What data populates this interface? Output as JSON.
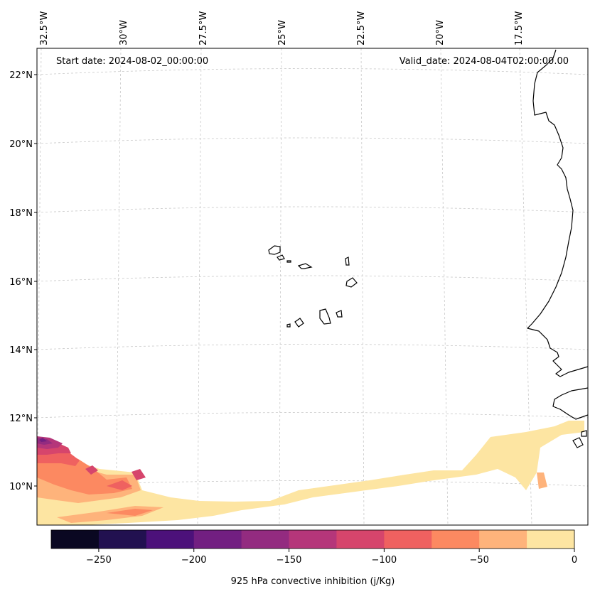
{
  "header": {
    "start_date": "Start date: 2024-08-02_00:00:00",
    "valid_date": "Valid_date: 2024-08-04T02:00:00.00"
  },
  "longitude_labels": [
    "32.5°W",
    "30°W",
    "27.5°W",
    "25°W",
    "22.5°W",
    "20°W",
    "17.5°W"
  ],
  "latitude_labels": [
    "22°N",
    "20°N",
    "18°N",
    "16°N",
    "14°N",
    "12°N",
    "10°N"
  ],
  "colorbar": {
    "label": "925 hPa convective inhibition (j/Kg)",
    "tick_labels": [
      "−250",
      "−200",
      "−150",
      "−100",
      "−50",
      "0"
    ],
    "levels": [
      -275,
      -250,
      -225,
      -200,
      -175,
      -150,
      -125,
      -100,
      -75,
      -50,
      -25,
      0
    ],
    "colors": [
      "#0a0822",
      "#221150",
      "#4c117a",
      "#721f81",
      "#932b80",
      "#b5367a",
      "#d6456c",
      "#ef6160",
      "#fc8961",
      "#feb37b",
      "#fde5a2"
    ]
  }
}
